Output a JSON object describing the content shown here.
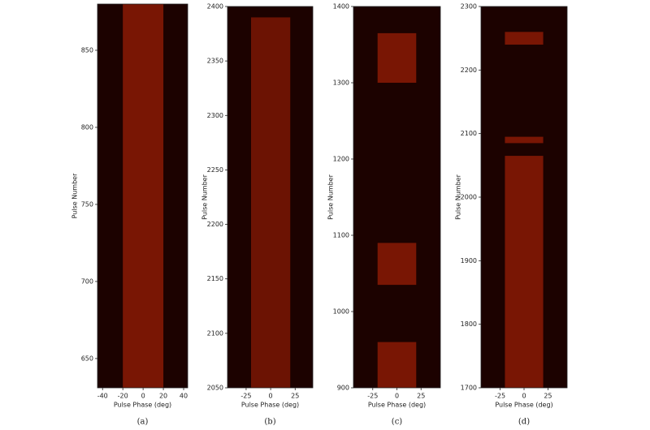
{
  "chart_data": [
    {
      "type": "heatmap",
      "caption": "(a)",
      "xlabel": "Pulse Phase (deg)",
      "ylabel": "Pulse Number",
      "xlim": [
        -45,
        44
      ],
      "xticks": [
        -40,
        -20,
        0,
        20,
        40
      ],
      "ylim": [
        631,
        880
      ],
      "yticks": [
        650,
        700,
        750,
        800,
        850
      ],
      "emission_ranges": [
        [
          631,
          880
        ]
      ],
      "color": "#8a1a05"
    },
    {
      "type": "heatmap",
      "caption": "(b)",
      "xlabel": "Pulse Phase (deg)",
      "ylabel": "Pulse Number",
      "xlim": [
        -44,
        43
      ],
      "xticks": [
        -25,
        0,
        25
      ],
      "ylim": [
        2050,
        2400
      ],
      "yticks": [
        2050,
        2100,
        2150,
        2200,
        2250,
        2300,
        2350,
        2400
      ],
      "emission_ranges": [
        [
          2050,
          2390
        ]
      ],
      "color": "#7a1604"
    },
    {
      "type": "heatmap",
      "caption": "(c)",
      "xlabel": "Pulse Phase (deg)",
      "ylabel": "Pulse Number",
      "xlim": [
        -45,
        45
      ],
      "xticks": [
        -25,
        0,
        25
      ],
      "ylim": [
        900,
        1400
      ],
      "yticks": [
        900,
        1000,
        1100,
        1200,
        1300,
        1400
      ],
      "emission_ranges": [
        [
          900,
          960
        ],
        [
          1035,
          1090
        ],
        [
          1300,
          1365
        ]
      ],
      "color": "#8a1a05"
    },
    {
      "type": "heatmap",
      "caption": "(d)",
      "xlabel": "Pulse Phase (deg)",
      "ylabel": "Pulse Number",
      "xlim": [
        -45,
        45
      ],
      "xticks": [
        -25,
        0,
        25
      ],
      "ylim": [
        1700,
        2300
      ],
      "yticks": [
        1700,
        1800,
        1900,
        2000,
        2100,
        2200,
        2300
      ],
      "emission_ranges": [
        [
          1700,
          2065
        ],
        [
          2085,
          2095
        ],
        [
          2240,
          2260
        ]
      ],
      "color": "#8a1a05"
    }
  ]
}
